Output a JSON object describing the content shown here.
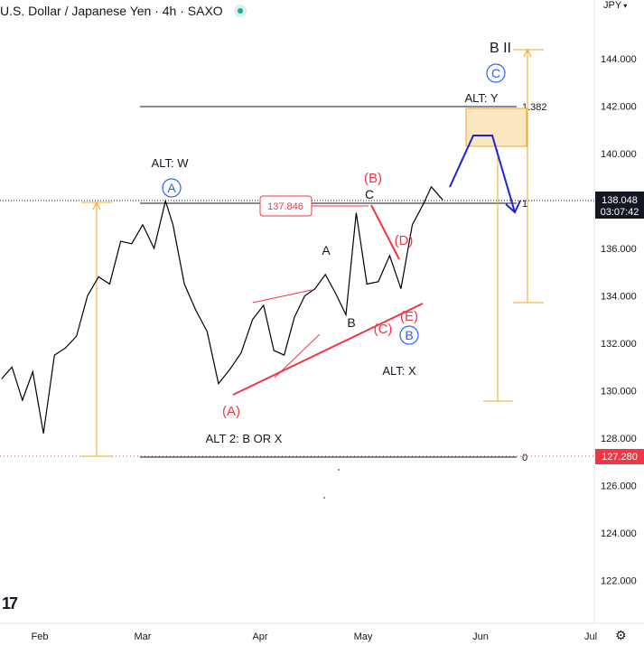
{
  "header": {
    "title": "U.S. Dollar / Japanese Yen · 4h · SAXO",
    "currency": "JPY"
  },
  "price_axis": {
    "current_price": "138.048",
    "countdown": "03:07:42",
    "horizontal_price": "127.280",
    "current_color": "#131722",
    "horizontal_color": "#f23645"
  },
  "chart_data": {
    "type": "line",
    "title": "U.S. Dollar / Japanese Yen · 4h · SAXO",
    "series": [
      {
        "values_description": "USDJPY 4h price path (approximate)",
        "x": [
          "Jan 21",
          "Jan 24",
          "Jan 27",
          "Jan 30",
          "Feb 2",
          "Feb 5",
          "Feb 8",
          "Feb 11",
          "Feb 14",
          "Feb 17",
          "Feb 20",
          "Feb 23",
          "Feb 26",
          "Mar 1",
          "Mar 4",
          "Mar 7",
          "Mar 9",
          "Mar 12",
          "Mar 15",
          "Mar 18",
          "Mar 21",
          "Mar 24",
          "Mar 27",
          "Mar 30",
          "Apr 2",
          "Apr 5",
          "Apr 8",
          "Apr 11",
          "Apr 14",
          "Apr 17",
          "Apr 20",
          "Apr 23",
          "Apr 26",
          "Apr 29",
          "May 2",
          "May 5",
          "May 8",
          "May 11",
          "May 14",
          "May 17",
          "May 19",
          "May 22"
        ],
        "values": [
          130.5,
          131.0,
          129.6,
          130.8,
          128.2,
          131.5,
          131.8,
          132.3,
          134.0,
          134.8,
          134.5,
          136.3,
          136.2,
          137.0,
          136.0,
          138.0,
          137.0,
          134.5,
          133.4,
          132.5,
          130.3,
          130.9,
          131.6,
          133.0,
          133.6,
          131.7,
          131.5,
          133.1,
          134.0,
          134.3,
          134.9,
          134.1,
          133.2,
          137.5,
          134.5,
          134.6,
          135.7,
          134.3,
          137.0,
          137.9,
          138.6,
          138.05
        ]
      }
    ],
    "y_ticks": [
      122.0,
      124.0,
      126.0,
      128.0,
      130.0,
      132.0,
      134.0,
      136.0,
      138.0,
      140.0,
      142.0,
      144.0
    ],
    "x_ticks": [
      "Feb",
      "Mar",
      "Apr",
      "May",
      "Jun",
      "Jul"
    ],
    "fib_levels": [
      {
        "label": "1.382",
        "value": 142.0
      },
      {
        "label": "1",
        "value": 138.0
      },
      {
        "label": "0",
        "value": 127.3
      }
    ],
    "annotations": [
      {
        "text": "B II",
        "color": "#131722"
      },
      {
        "text": "C",
        "circled": true,
        "color": "#2962ff"
      },
      {
        "text": "ALT: Y",
        "color": "#131722"
      },
      {
        "text": "ALT: W",
        "color": "#131722"
      },
      {
        "text": "A",
        "circled": true,
        "color": "#2962ff"
      },
      {
        "text": "(B)",
        "color": "#f23645"
      },
      {
        "text": "C",
        "color": "#131722"
      },
      {
        "text": "137.846",
        "boxed": true,
        "color": "#f23645"
      },
      {
        "text": "A",
        "color": "#131722"
      },
      {
        "text": "(D)",
        "color": "#f23645"
      },
      {
        "text": "B",
        "color": "#131722"
      },
      {
        "text": "(E)",
        "color": "#f23645"
      },
      {
        "text": "(C)",
        "color": "#f23645"
      },
      {
        "text": "B",
        "circled": true,
        "color": "#2962ff"
      },
      {
        "text": "ALT: X",
        "color": "#131722"
      },
      {
        "text": "(A)",
        "color": "#f23645"
      },
      {
        "text": "ALT 2: B OR X",
        "color": "#131722"
      }
    ],
    "ylim": [
      120.8,
      145.4
    ],
    "grid": false,
    "colors": {
      "price": "#000000",
      "wave": "#f23645",
      "projection": "#2962ff",
      "measure": "#f5a623"
    }
  }
}
